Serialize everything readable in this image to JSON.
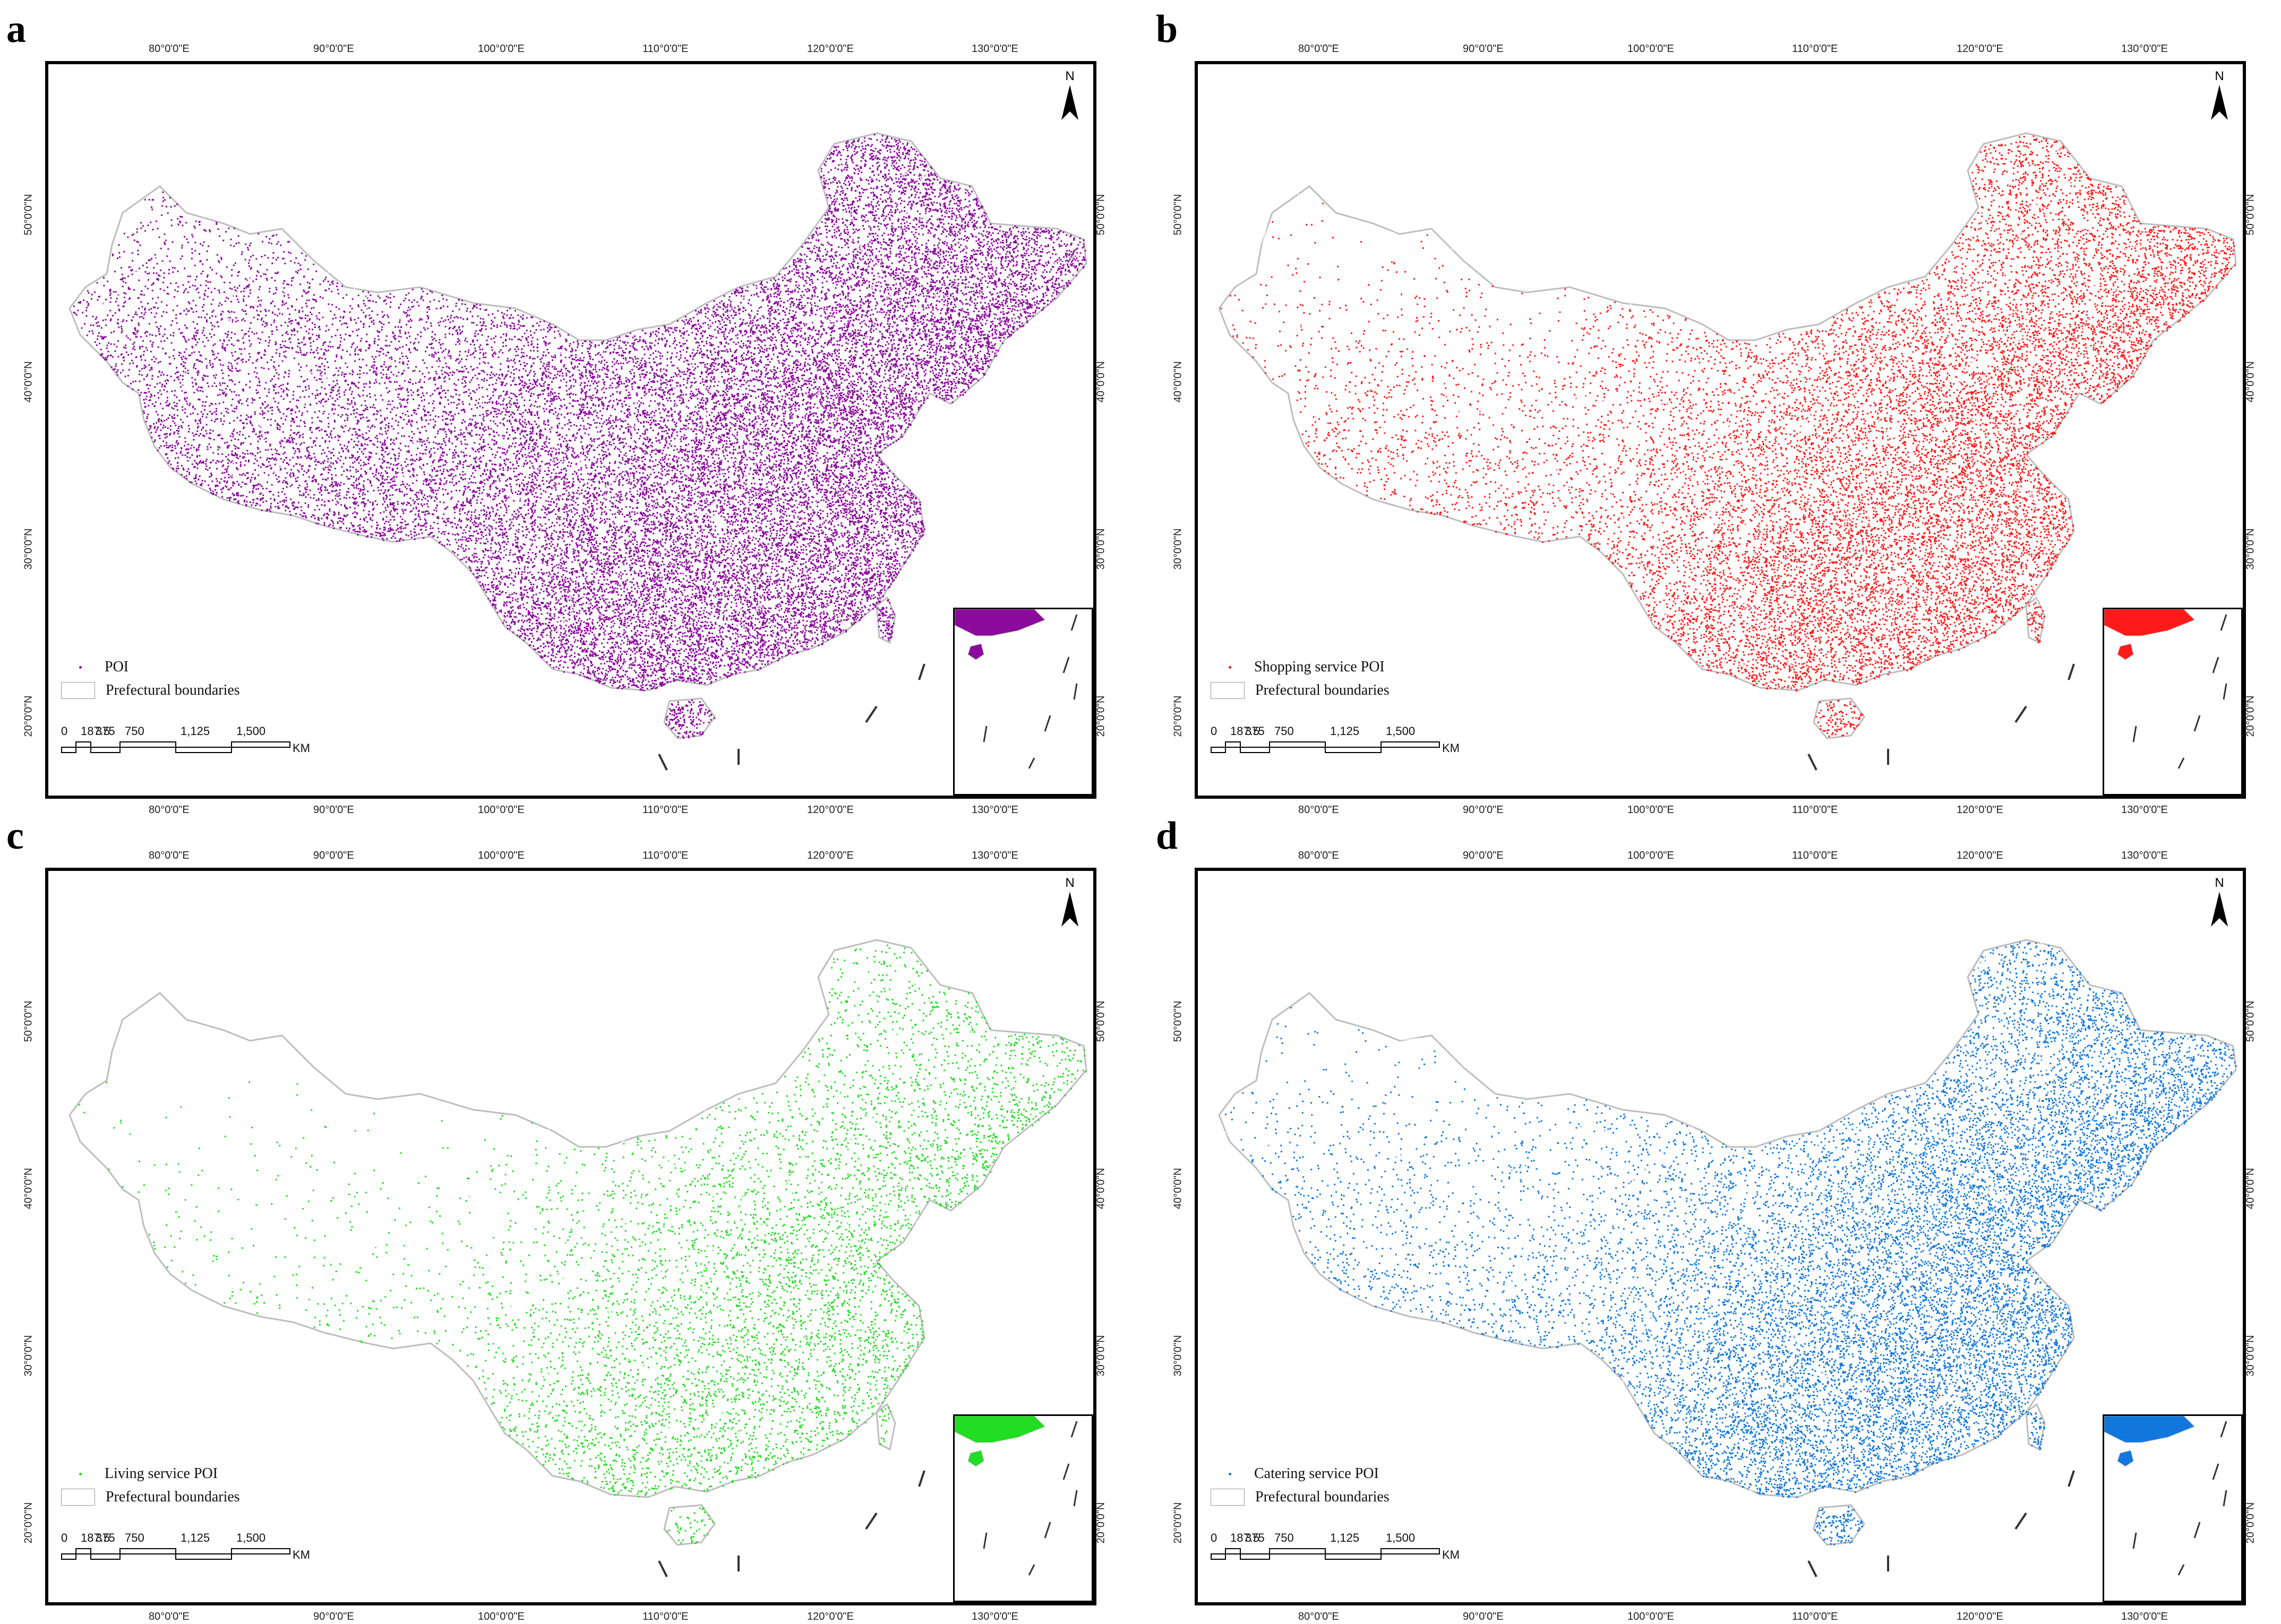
{
  "panels": [
    {
      "letter": "a",
      "color": "#8B0A9C",
      "density": "very-high",
      "legend_label": "POI"
    },
    {
      "letter": "b",
      "color": "#FF1A1A",
      "density": "high",
      "legend_label": "Shopping service POI"
    },
    {
      "letter": "c",
      "color": "#22DD22",
      "density": "medium",
      "legend_label": "Living service POI"
    },
    {
      "letter": "d",
      "color": "#1177DD",
      "density": "high",
      "legend_label": "Catering service POI"
    }
  ],
  "legend": {
    "boundary_label": "Prefectural boundaries"
  },
  "longitude_ticks": [
    "80°0'0\"E",
    "90°0'0\"E",
    "100°0'0\"E",
    "110°0'0\"E",
    "120°0'0\"E",
    "130°0'0\"E"
  ],
  "latitude_ticks": [
    "50°0'0\"N",
    "40°0'0\"N",
    "30°0'0\"N",
    "20°0'0\"N"
  ],
  "scalebar": {
    "labels": [
      "0",
      "187.5",
      "375",
      "750",
      "1,125",
      "1,500"
    ],
    "unit": "KM"
  },
  "north_label": "N",
  "boundary_color": "#bdbdbd"
}
